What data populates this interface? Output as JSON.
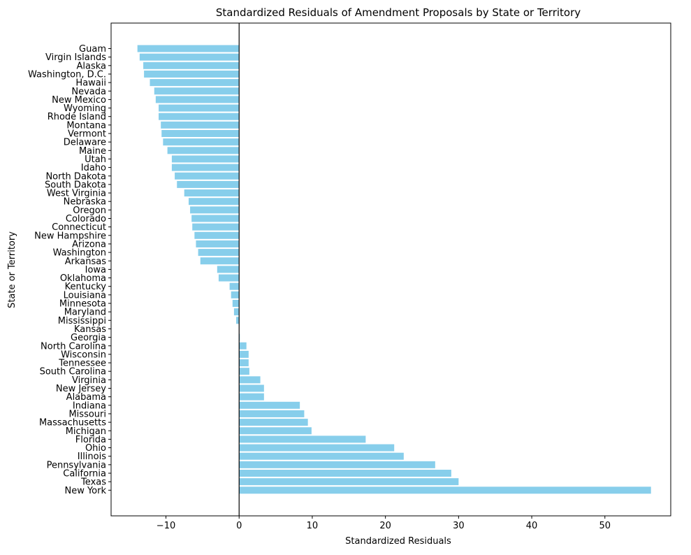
{
  "chart_data": {
    "type": "bar",
    "orientation": "horizontal",
    "title": "Standardized Residuals of Amendment Proposals by State or Territory",
    "xlabel": "Standardized Residuals",
    "ylabel": "State or Territory",
    "xlim": [
      -17.5,
      59.0
    ],
    "xticks": [
      -10,
      0,
      10,
      20,
      30,
      40,
      50
    ],
    "xtick_labels": [
      "−10",
      "0",
      "10",
      "20",
      "30",
      "40",
      "50"
    ],
    "reference_line_x": 0,
    "grid": false,
    "bar_color": "#87ceeb",
    "categories": [
      "Guam",
      "Virgin Islands",
      "Alaska",
      "Washington, D.C.",
      "Hawaii",
      "Nevada",
      "New Mexico",
      "Wyoming",
      "Rhode Island",
      "Montana",
      "Vermont",
      "Delaware",
      "Maine",
      "Utah",
      "Idaho",
      "North Dakota",
      "South Dakota",
      "West Virginia",
      "Nebraska",
      "Oregon",
      "Colorado",
      "Connecticut",
      "New Hampshire",
      "Arizona",
      "Washington",
      "Arkansas",
      "Iowa",
      "Oklahoma",
      "Kentucky",
      "Louisiana",
      "Minnesota",
      "Maryland",
      "Mississippi",
      "Kansas",
      "Georgia",
      "North Carolina",
      "Wisconsin",
      "Tennessee",
      "South Carolina",
      "Virginia",
      "New Jersey",
      "Alabama",
      "Indiana",
      "Missouri",
      "Massachusetts",
      "Michigan",
      "Florida",
      "Ohio",
      "Illinois",
      "Pennsylvania",
      "California",
      "Texas",
      "New York"
    ],
    "values": [
      -13.9,
      -13.6,
      -13.1,
      -13.0,
      -12.2,
      -11.6,
      -11.4,
      -11.0,
      -11.0,
      -10.7,
      -10.6,
      -10.4,
      -9.8,
      -9.2,
      -9.2,
      -8.8,
      -8.5,
      -7.5,
      -6.9,
      -6.7,
      -6.5,
      -6.4,
      -6.1,
      -5.9,
      -5.6,
      -5.3,
      -3.0,
      -2.8,
      -1.3,
      -1.1,
      -0.9,
      -0.7,
      -0.4,
      0.0,
      0.1,
      1.0,
      1.3,
      1.3,
      1.4,
      2.9,
      3.4,
      3.4,
      8.3,
      8.9,
      9.4,
      9.9,
      17.3,
      21.2,
      22.5,
      26.8,
      29.0,
      30.0,
      56.3
    ]
  }
}
